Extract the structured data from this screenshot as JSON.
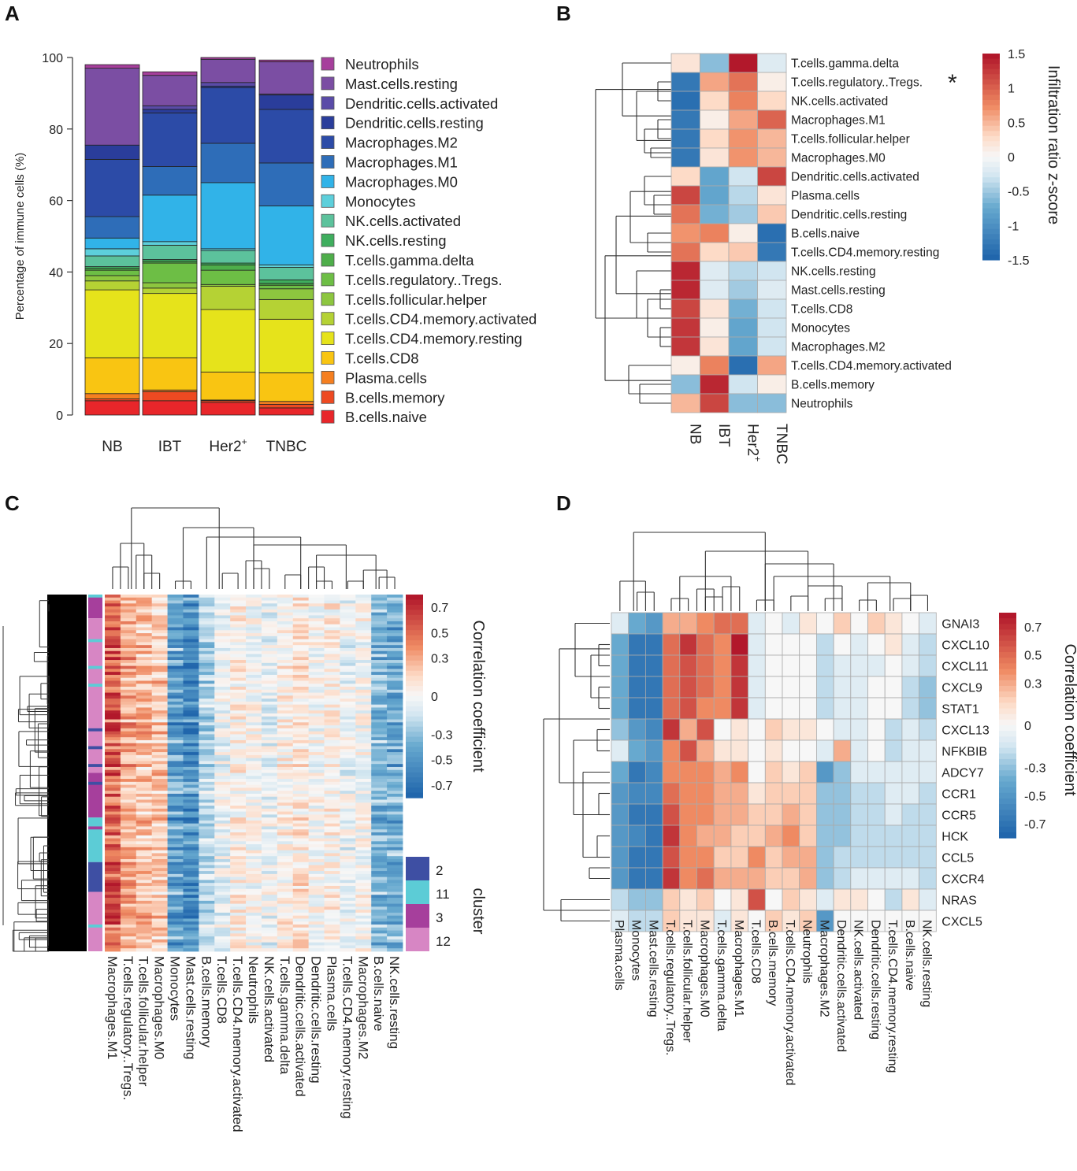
{
  "panels": {
    "a": "A",
    "b": "B",
    "c": "C",
    "d": "D"
  },
  "chart_data": [
    {
      "type": "bar",
      "stacked": true,
      "panel": "A",
      "ylabel": "Percentage of immune cells (%)",
      "ylim": [
        0,
        100
      ],
      "yticks": [
        "0",
        "20",
        "40",
        "60",
        "80",
        "100"
      ],
      "categories": [
        "NB",
        "IBT",
        "Her2",
        "TNBC"
      ],
      "category_sup": [
        "",
        "",
        "+",
        ""
      ],
      "series": [
        {
          "name": "B.cells.naive",
          "color": "#E8262A",
          "values": [
            4,
            4,
            3.5,
            2
          ]
        },
        {
          "name": "B.cells.memory",
          "color": "#EE4A22",
          "values": [
            0.5,
            2.5,
            0.5,
            1
          ]
        },
        {
          "name": "Plasma.cells",
          "color": "#F57F20",
          "values": [
            1.5,
            0.5,
            0.2,
            0.8
          ]
        },
        {
          "name": "T.cells.CD8",
          "color": "#F9C512",
          "values": [
            10,
            9,
            7.8,
            8
          ]
        },
        {
          "name": "T.cells.CD4.memory.resting",
          "color": "#E6E31B",
          "values": [
            19,
            18,
            17.5,
            15
          ]
        },
        {
          "name": "T.cells.CD4.memory.activated",
          "color": "#B5D234",
          "values": [
            2.5,
            1.5,
            6.5,
            5.5
          ]
        },
        {
          "name": "T.cells.follicular.helper",
          "color": "#8DC63F",
          "values": [
            1.5,
            1.5,
            0.5,
            3
          ]
        },
        {
          "name": "T.cells.regulatory..Tregs.",
          "color": "#6DBE45",
          "values": [
            1.5,
            5.5,
            4,
            1
          ]
        },
        {
          "name": "T.cells.gamma.delta",
          "color": "#4EAE4A",
          "values": [
            0.5,
            0.5,
            1.5,
            0.5
          ]
        },
        {
          "name": "NK.cells.resting",
          "color": "#3FAE5E",
          "values": [
            0.5,
            0.5,
            0.5,
            1
          ]
        },
        {
          "name": "NK.cells.activated",
          "color": "#5CC29C",
          "values": [
            3,
            4,
            3.5,
            3.5
          ]
        },
        {
          "name": "Monocytes",
          "color": "#5DCFDB",
          "values": [
            2,
            1,
            0.5,
            0.7
          ]
        },
        {
          "name": "Macrophages.M0",
          "color": "#31B3E8",
          "values": [
            3,
            13,
            18.5,
            16.5
          ]
        },
        {
          "name": "Macrophages.M1",
          "color": "#2E6DB8",
          "values": [
            6,
            8,
            11,
            12
          ]
        },
        {
          "name": "Macrophages.M2",
          "color": "#2C4BA7",
          "values": [
            16,
            15,
            15.5,
            15
          ]
        },
        {
          "name": "Dendritic.cells.resting",
          "color": "#2A3D9B",
          "values": [
            4,
            1,
            0.5,
            4
          ]
        },
        {
          "name": "Dendritic.cells.activated",
          "color": "#5A4BA8",
          "values": [
            0,
            1,
            1,
            0.3
          ]
        },
        {
          "name": "Mast.cells.resting",
          "color": "#7B4EA3",
          "values": [
            21.5,
            8.5,
            6.5,
            9
          ]
        },
        {
          "name": "Neutrophils",
          "color": "#A63F9C",
          "values": [
            1,
            1,
            0.5,
            0.5
          ]
        }
      ]
    },
    {
      "type": "heatmap",
      "panel": "B",
      "columns": [
        "NB",
        "IBT",
        "Her2",
        "TNBC"
      ],
      "column_sup": [
        "",
        "",
        "+",
        ""
      ],
      "rows": [
        "T.cells.gamma.delta",
        "T.cells.regulatory..Tregs.",
        "NK.cells.activated",
        "Macrophages.M1",
        "T.cells.follicular.helper",
        "Macrophages.M0",
        "Dendritic.cells.activated",
        "Plasma.cells",
        "Dendritic.cells.resting",
        "B.cells.naive",
        "T.cells.CD4.memory.resting",
        "NK.cells.resting",
        "Mast.cells.resting",
        "T.cells.CD8",
        "Monocytes",
        "Macrophages.M2",
        "T.cells.CD4.memory.activated",
        "B.cells.memory",
        "Neutrophils"
      ],
      "values": [
        [
          0.2,
          -0.6,
          1.5,
          -0.2
        ],
        [
          -1.3,
          0.6,
          0.9,
          0.1
        ],
        [
          -1.4,
          0.3,
          0.8,
          0.3
        ],
        [
          -1.3,
          0.1,
          0.6,
          1.0
        ],
        [
          -1.3,
          0.3,
          0.7,
          0.5
        ],
        [
          -1.3,
          0.2,
          0.7,
          0.5
        ],
        [
          0.3,
          -0.8,
          -0.3,
          1.2
        ],
        [
          1.2,
          -0.8,
          -0.4,
          0.2
        ],
        [
          0.9,
          -0.7,
          -0.5,
          0.4
        ],
        [
          0.7,
          0.8,
          0.1,
          -1.4
        ],
        [
          0.9,
          0.3,
          0.4,
          -1.3
        ],
        [
          1.4,
          -0.2,
          -0.4,
          -0.3
        ],
        [
          1.4,
          -0.2,
          -0.5,
          -0.2
        ],
        [
          1.2,
          0.2,
          -0.7,
          -0.3
        ],
        [
          1.3,
          0.1,
          -0.8,
          -0.3
        ],
        [
          1.3,
          0.2,
          -0.8,
          -0.3
        ],
        [
          0.1,
          0.8,
          -1.4,
          0.6
        ],
        [
          -0.6,
          1.4,
          -0.3,
          0.1
        ],
        [
          0.5,
          1.2,
          -0.6,
          -0.6
        ]
      ],
      "highlight_marker": "*",
      "highlight_color": "#E8262A",
      "colorbar": {
        "title": "Infiltration ratio z-score",
        "range": [
          -1.5,
          1.5
        ],
        "ticks": [
          "1.5",
          "1",
          "0.5",
          "0",
          "-0.5",
          "-1",
          "-1.5"
        ]
      }
    },
    {
      "type": "heatmap",
      "panel": "C",
      "columns": [
        "Macrophages.M1",
        "T.cells.regulatory..Tregs.",
        "T.cells.follicular.helper",
        "Macrophages.M0",
        "Monocytes",
        "Mast.cells.resting",
        "B.cells.memory",
        "T.cells.CD8",
        "T.cells.CD4.memory.activated",
        "Neutrophils",
        "NK.cells.activated",
        "T.cells.gamma.delta",
        "Dendritic.cells.activated",
        "Dendritic.cells.resting",
        "Plasma.cells",
        "T.cells.CD4.memory.resting",
        "Macrophages.M2",
        "B.cells.naive",
        "NK.cells.resting"
      ],
      "column_means": [
        0.55,
        0.3,
        0.25,
        0.2,
        -0.45,
        -0.55,
        -0.2,
        -0.05,
        0.05,
        0.0,
        -0.05,
        0.05,
        0.1,
        0.0,
        0.05,
        -0.05,
        0.0,
        -0.35,
        -0.4
      ],
      "colorbar": {
        "title": "Correlation coefficient",
        "range": [
          -0.8,
          0.8
        ],
        "ticks": [
          "0.7",
          "0.5",
          "0.3",
          "0",
          "-0.3",
          "-0.5",
          "-0.7"
        ]
      },
      "cluster_legend": {
        "title": "cluster",
        "items": [
          {
            "label": "2",
            "color": "#3E4FA3"
          },
          {
            "label": "11",
            "color": "#5CCCD6"
          },
          {
            "label": "3",
            "color": "#A63F9C"
          },
          {
            "label": "12",
            "color": "#D786C4"
          }
        ]
      }
    },
    {
      "type": "heatmap",
      "panel": "D",
      "columns": [
        "Plasma.cells",
        "Monocytes",
        "Mast.cells.resting",
        "T.cells.regulatory..Tregs.",
        "T.cells.follicular.helper",
        "Macrophages.M0",
        "T.cells.gamma.delta",
        "Macrophages.M1",
        "T.cells.CD8",
        "B.cells.memory",
        "T.cells.CD4.memory.activated",
        "Neutrophils",
        "Macrophages.M2",
        "Dendritic.cells.activated",
        "NK.cells.activated",
        "Dendritic.cells.resting",
        "T.cells.CD4.memory.resting",
        "B.cells.naive",
        "NK.cells.resting"
      ],
      "rows": [
        "GNAI3",
        "CXCL10",
        "CXCL11",
        "CXCL9",
        "STAT1",
        "CXCL13",
        "NFKBIB",
        "ADCY7",
        "CCR1",
        "CCR5",
        "HCK",
        "CCL5",
        "CXCR4",
        "NRAS",
        "CXCL5"
      ],
      "values": [
        [
          -0.1,
          -0.4,
          -0.5,
          0.3,
          0.3,
          0.4,
          0.5,
          0.5,
          -0.1,
          0.0,
          -0.1,
          0.1,
          0.0,
          0.2,
          0.0,
          0.2,
          0.1,
          0.0,
          -0.1
        ],
        [
          -0.4,
          -0.7,
          -0.7,
          0.5,
          0.7,
          0.5,
          0.4,
          0.8,
          -0.1,
          0.0,
          0.0,
          0.0,
          -0.2,
          0.0,
          -0.1,
          0.0,
          0.1,
          -0.1,
          -0.2
        ],
        [
          -0.4,
          -0.7,
          -0.7,
          0.5,
          0.6,
          0.5,
          0.4,
          0.7,
          -0.1,
          0.0,
          0.0,
          0.0,
          -0.2,
          -0.1,
          -0.1,
          -0.1,
          0.0,
          -0.1,
          -0.2
        ],
        [
          -0.4,
          -0.7,
          -0.7,
          0.5,
          0.6,
          0.5,
          0.4,
          0.7,
          -0.1,
          0.0,
          0.0,
          0.0,
          -0.2,
          -0.1,
          -0.1,
          0.0,
          0.0,
          -0.2,
          -0.3
        ],
        [
          -0.4,
          -0.7,
          -0.7,
          0.5,
          0.6,
          0.4,
          0.4,
          0.7,
          -0.1,
          0.0,
          0.0,
          0.0,
          -0.2,
          -0.1,
          -0.1,
          0.0,
          0.0,
          -0.2,
          -0.3
        ],
        [
          -0.3,
          -0.5,
          -0.6,
          0.7,
          0.3,
          0.6,
          0.0,
          0.1,
          0.0,
          0.2,
          0.1,
          0.1,
          0.0,
          -0.1,
          -0.1,
          0.0,
          -0.2,
          -0.1,
          -0.2
        ],
        [
          -0.1,
          -0.4,
          -0.5,
          0.4,
          0.6,
          0.3,
          0.1,
          0.1,
          0.0,
          0.1,
          0.0,
          0.0,
          -0.1,
          0.3,
          -0.1,
          0.0,
          -0.2,
          -0.1,
          -0.1
        ],
        [
          -0.4,
          -0.7,
          -0.6,
          0.4,
          0.4,
          0.4,
          0.3,
          0.4,
          0.0,
          0.2,
          0.1,
          0.2,
          -0.5,
          -0.3,
          -0.1,
          -0.1,
          -0.1,
          -0.1,
          -0.1
        ],
        [
          -0.5,
          -0.6,
          -0.6,
          0.5,
          0.4,
          0.4,
          0.3,
          0.3,
          0.1,
          0.2,
          0.2,
          0.2,
          -0.3,
          -0.3,
          -0.2,
          -0.2,
          -0.1,
          -0.1,
          -0.2
        ],
        [
          -0.5,
          -0.7,
          -0.7,
          0.6,
          0.4,
          0.4,
          0.3,
          0.3,
          0.2,
          0.2,
          0.3,
          0.2,
          -0.3,
          -0.3,
          -0.2,
          -0.2,
          -0.1,
          -0.2,
          -0.2
        ],
        [
          -0.5,
          -0.6,
          -0.7,
          0.7,
          0.4,
          0.3,
          0.3,
          0.2,
          0.2,
          0.3,
          0.4,
          0.2,
          -0.3,
          -0.3,
          -0.2,
          -0.2,
          -0.2,
          -0.2,
          -0.2
        ],
        [
          -0.5,
          -0.7,
          -0.7,
          0.6,
          0.4,
          0.4,
          0.2,
          0.2,
          0.4,
          0.2,
          0.3,
          0.3,
          -0.3,
          -0.2,
          -0.2,
          -0.2,
          -0.2,
          -0.2,
          -0.2
        ],
        [
          -0.5,
          -0.7,
          -0.7,
          0.7,
          0.4,
          0.5,
          0.3,
          0.3,
          0.3,
          0.2,
          0.2,
          0.3,
          -0.3,
          -0.2,
          -0.1,
          -0.1,
          -0.1,
          -0.1,
          -0.2
        ],
        [
          -0.2,
          -0.3,
          -0.3,
          0.2,
          0.1,
          0.2,
          0.0,
          0.1,
          0.6,
          0.0,
          0.2,
          0.1,
          -0.1,
          0.1,
          0.1,
          0.0,
          -0.2,
          0.1,
          -0.1
        ],
        [
          -0.1,
          -0.2,
          -0.2,
          0.2,
          0.1,
          0.1,
          -0.1,
          0.1,
          0.0,
          0.2,
          0.1,
          0.2,
          -0.5,
          0.0,
          0.0,
          0.0,
          0.0,
          0.0,
          0.0
        ]
      ],
      "colorbar": {
        "title": "Correlation coefficient",
        "range": [
          -0.8,
          0.8
        ],
        "ticks": [
          "0.7",
          "0.5",
          "0.3",
          "0",
          "-0.3",
          "-0.5",
          "-0.7"
        ]
      }
    }
  ]
}
